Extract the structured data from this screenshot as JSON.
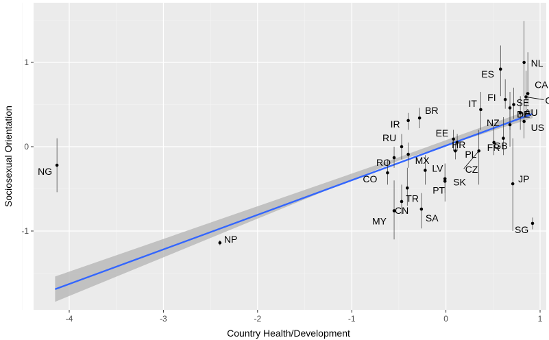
{
  "chart_data": {
    "type": "scatter",
    "title": "",
    "xlabel": "Country Health/Development",
    "ylabel": "Sociosexual Orientation",
    "xlim": [
      -4.5,
      1.1
    ],
    "ylim": [
      -2.0,
      1.6
    ],
    "x_ticks": [
      -4,
      -3,
      -2,
      -1,
      0,
      1
    ],
    "x_tick_labels": [
      "-4",
      "-3",
      "-2",
      "-1",
      "0",
      "1"
    ],
    "y_ticks": [
      -1,
      0,
      1
    ],
    "y_tick_labels": [
      "-1",
      "0",
      "1"
    ],
    "grid": true,
    "colors": {
      "panel": "#ebebeb",
      "grid_major": "#ffffff",
      "fit_line": "#3366ff",
      "ribbon": "#b3b3b3",
      "points": "#000000"
    },
    "fit": {
      "x_start": -4.15,
      "y_start": -1.69,
      "x_end": 0.92,
      "y_end": 0.39,
      "ci_start": [
        -1.84,
        -1.54
      ],
      "ci_mid": [
        0.04,
        0.08
      ],
      "ci_end": [
        0.34,
        0.45
      ]
    },
    "points": [
      {
        "label": "NG",
        "x": -4.13,
        "y": -0.22,
        "lo": -0.54,
        "hi": 0.1
      },
      {
        "label": "NP",
        "x": -2.4,
        "y": -1.14,
        "lo": -1.17,
        "hi": -1.11
      },
      {
        "label": "ES",
        "x": 0.58,
        "y": 0.92,
        "lo": 0.6,
        "hi": 1.2
      },
      {
        "label": "NL",
        "x": 0.83,
        "y": 1.0,
        "lo": 0.6,
        "hi": 1.49
      },
      {
        "label": "CA",
        "x": 0.87,
        "y": 0.63,
        "lo": 0.5,
        "hi": 1.12
      },
      {
        "label": "FI",
        "x": 0.63,
        "y": 0.56,
        "lo": 0.45,
        "hi": 0.8
      },
      {
        "label": "SE",
        "x": 0.72,
        "y": 0.5,
        "lo": 0.33,
        "hi": 0.7
      },
      {
        "label": "CH",
        "x": 0.85,
        "y": 0.59,
        "lo": 0.35,
        "hi": 0.9
      },
      {
        "label": "IT",
        "x": 0.37,
        "y": 0.44,
        "lo": 0.2,
        "hi": 0.65
      },
      {
        "label": "DE",
        "x": 0.68,
        "y": 0.46,
        "lo": 0.2,
        "hi": 0.65
      },
      {
        "label": "AU",
        "x": 0.79,
        "y": 0.4,
        "lo": 0.2,
        "hi": 0.6
      },
      {
        "label": "US",
        "x": 0.83,
        "y": 0.3,
        "lo": 0.1,
        "hi": 0.5
      },
      {
        "label": "BR",
        "x": -0.28,
        "y": 0.34,
        "lo": 0.22,
        "hi": 0.46
      },
      {
        "label": "IR",
        "x": -0.4,
        "y": 0.31,
        "lo": 0.2,
        "hi": 0.4
      },
      {
        "label": "NZ",
        "x": 0.68,
        "y": 0.26,
        "lo": 0.0,
        "hi": 0.5
      },
      {
        "label": "EE",
        "x": 0.08,
        "y": 0.09,
        "lo": -0.05,
        "hi": 0.2
      },
      {
        "label": "GB",
        "x": 0.61,
        "y": 0.1,
        "lo": -0.1,
        "hi": 0.35
      },
      {
        "label": "FR",
        "x": 0.51,
        "y": 0.05,
        "lo": -0.1,
        "hi": 0.25
      },
      {
        "label": "RU",
        "x": -0.47,
        "y": 0.0,
        "lo": -0.15,
        "hi": 0.15
      },
      {
        "label": "HR",
        "x": 0.12,
        "y": 0.05,
        "lo": -0.05,
        "hi": 0.15
      },
      {
        "label": "PL",
        "x": 0.1,
        "y": -0.05,
        "lo": -0.15,
        "hi": 0.05
      },
      {
        "label": "MX",
        "x": -0.4,
        "y": -0.09,
        "lo": -0.25,
        "hi": 0.05
      },
      {
        "label": "RO",
        "x": -0.55,
        "y": -0.13,
        "lo": -0.25,
        "hi": 0.0
      },
      {
        "label": "CZ",
        "x": 0.35,
        "y": -0.05,
        "lo": -0.45,
        "hi": 0.2
      },
      {
        "label": "LV",
        "x": -0.22,
        "y": -0.28,
        "lo": -0.45,
        "hi": -0.1
      },
      {
        "label": "CO",
        "x": -0.62,
        "y": -0.31,
        "lo": -0.45,
        "hi": -0.15
      },
      {
        "label": "SK",
        "x": -0.01,
        "y": -0.38,
        "lo": -0.55,
        "hi": -0.2
      },
      {
        "label": "TR",
        "x": -0.41,
        "y": -0.49,
        "lo": -0.7,
        "hi": -0.25
      },
      {
        "label": "PT",
        "x": -0.01,
        "y": -0.41,
        "lo": -0.65,
        "hi": -0.2
      },
      {
        "label": "JP",
        "x": 0.71,
        "y": -0.44,
        "lo": -1.0,
        "hi": 0.1
      },
      {
        "label": "CN",
        "x": -0.47,
        "y": -0.65,
        "lo": -0.8,
        "hi": -0.45
      },
      {
        "label": "MY",
        "x": -0.55,
        "y": -0.76,
        "lo": -1.1,
        "hi": -0.4
      },
      {
        "label": "SA",
        "x": -0.26,
        "y": -0.74,
        "lo": -0.97,
        "hi": -0.55
      },
      {
        "label": "SG",
        "x": 0.92,
        "y": -0.91,
        "lo": -0.98,
        "hi": -0.84
      }
    ]
  }
}
